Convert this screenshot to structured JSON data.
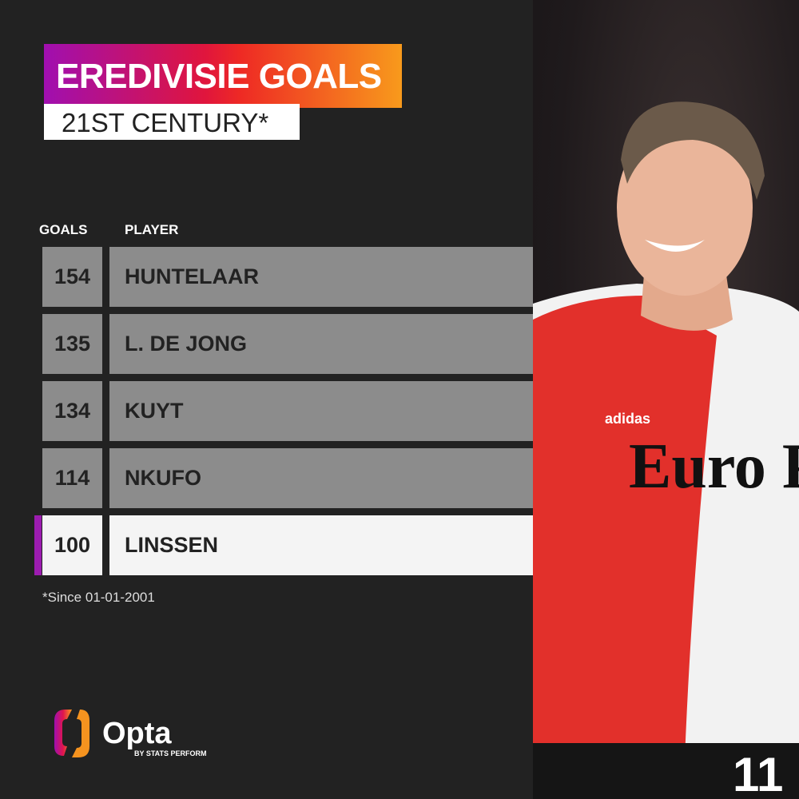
{
  "title": "EREDIVISIE GOALS",
  "subtitle": "21ST CENTURY*",
  "headers": {
    "goals": "GOALS",
    "player": "PLAYER"
  },
  "rows": [
    {
      "goals": "154",
      "player": "HUNTELAAR"
    },
    {
      "goals": "135",
      "player": "L. DE JONG"
    },
    {
      "goals": "134",
      "player": "KUYT"
    },
    {
      "goals": "114",
      "player": "NKUFO"
    },
    {
      "goals": "100",
      "player": "LINSSEN",
      "highlighted": true
    }
  ],
  "footnote": "*Since 01-01-2001",
  "logo": {
    "name": "Opta",
    "tagline": "BY STATS PERFORM"
  },
  "photo": {
    "shirt_sponsor": "Euro Parcs",
    "kit_brand": "adidas",
    "shirt_number": "11"
  },
  "colors": {
    "background": "#222222",
    "row": "#8c8c8c",
    "highlight_row": "#f4f4f4",
    "highlight_marker": "#9c1cb0",
    "gradient_start": "#a00fb0",
    "gradient_end": "#f89a1c"
  }
}
